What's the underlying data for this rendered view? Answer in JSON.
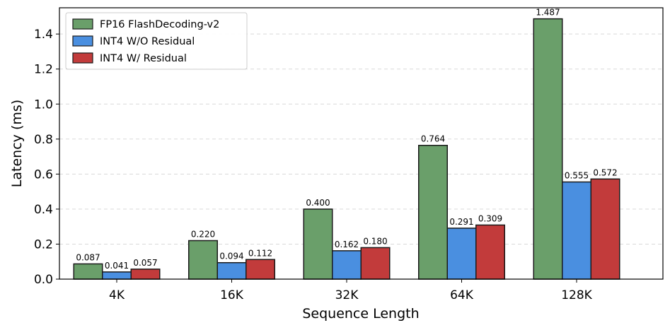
{
  "chart_data": {
    "type": "bar",
    "title": "",
    "xlabel": "Sequence Length",
    "ylabel": "Latency (ms)",
    "categories": [
      "4K",
      "16K",
      "32K",
      "64K",
      "128K"
    ],
    "ylim": [
      0,
      1.55
    ],
    "yticks": [
      "0.0",
      "0.2",
      "0.4",
      "0.6",
      "0.8",
      "1.0",
      "1.2",
      "1.4"
    ],
    "grid": true,
    "legend_position": "top-left",
    "series": [
      {
        "name": "FP16 FlashDecoding-v2",
        "color": "#6a9f6a",
        "values": [
          0.087,
          0.22,
          0.4,
          0.764,
          1.487
        ],
        "labels": [
          "0.087",
          "0.220",
          "0.400",
          "0.764",
          "1.487"
        ]
      },
      {
        "name": "INT4 W/O Residual",
        "color": "#4a8fe0",
        "values": [
          0.041,
          0.094,
          0.162,
          0.291,
          0.555
        ],
        "labels": [
          "0.041",
          "0.094",
          "0.162",
          "0.291",
          "0.555"
        ]
      },
      {
        "name": "INT4 W/ Residual",
        "color": "#c23b3b",
        "values": [
          0.057,
          0.112,
          0.18,
          0.309,
          0.572
        ],
        "labels": [
          "0.057",
          "0.112",
          "0.180",
          "0.309",
          "0.572"
        ]
      }
    ]
  }
}
